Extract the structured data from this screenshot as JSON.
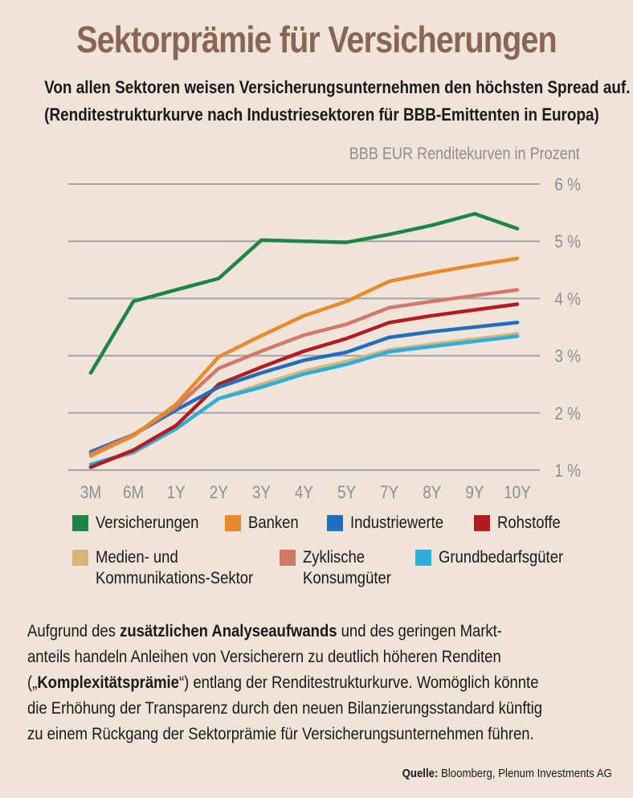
{
  "header": {
    "title": "Sektorprämie für Versicherungen",
    "subtitle_line1": "Von allen Sektoren weisen Versicherungsunternehmen den höchsten Spread auf.",
    "subtitle_line2": "(Renditestrukturkurve nach Industriesektoren für BBB-Emittenten in Europa)"
  },
  "chart_data": {
    "type": "line",
    "title": "Sektorprämie für Versicherungen",
    "ylabel": "BBB EUR Renditekurven in Prozent",
    "categories": [
      "3M",
      "6M",
      "1Y",
      "2Y",
      "3Y",
      "4Y",
      "5Y",
      "7Y",
      "8Y",
      "9Y",
      "10Y"
    ],
    "yticks": [
      "1 %",
      "2 %",
      "3 %",
      "4 %",
      "5 %",
      "6 %"
    ],
    "ylim": [
      1,
      6
    ],
    "grid": true,
    "legend_position": "bottom",
    "series": [
      {
        "name": "Versicherungen",
        "color": "#1d8548",
        "values": [
          2.7,
          3.95,
          4.15,
          4.35,
          5.02,
          5.0,
          4.98,
          5.12,
          5.28,
          5.48,
          5.22
        ]
      },
      {
        "name": "Banken",
        "color": "#e8892c",
        "values": [
          1.25,
          1.6,
          2.15,
          2.98,
          3.35,
          3.7,
          3.95,
          4.3,
          4.45,
          4.58,
          4.7
        ]
      },
      {
        "name": "Industriewerte",
        "color": "#1f6fbf",
        "values": [
          1.32,
          1.62,
          2.05,
          2.45,
          2.7,
          2.92,
          3.06,
          3.32,
          3.42,
          3.5,
          3.58
        ]
      },
      {
        "name": "Rohstoffe",
        "color": "#b31a21",
        "values": [
          1.05,
          1.35,
          1.78,
          2.5,
          2.8,
          3.08,
          3.3,
          3.58,
          3.7,
          3.8,
          3.9
        ]
      },
      {
        "name": "Medien- und Kommunikations-Sektor",
        "color": "#d6b57a",
        "values": [
          1.1,
          1.3,
          1.72,
          2.25,
          2.5,
          2.73,
          2.9,
          3.1,
          3.2,
          3.29,
          3.38
        ]
      },
      {
        "name": "Zyklische Konsumgüter",
        "color": "#d2786a",
        "values": [
          1.28,
          1.62,
          2.1,
          2.78,
          3.08,
          3.36,
          3.55,
          3.84,
          3.95,
          4.05,
          4.15
        ]
      },
      {
        "name": "Grundbedarfsgüter",
        "color": "#2ab0db",
        "values": [
          1.1,
          1.32,
          1.72,
          2.25,
          2.45,
          2.68,
          2.85,
          3.07,
          3.16,
          3.25,
          3.34
        ]
      }
    ]
  },
  "legend": {
    "versicherungen": "Versicherungen",
    "banken": "Banken",
    "industriewerte": "Industriewerte",
    "rohstoffe": "Rohstoffe",
    "medien_line1": "Medien- und",
    "medien_line2": "Kommunikations-Sektor",
    "zyklische_line1": "Zyklische",
    "zyklische_line2": "Konsumgüter",
    "grundbedarf": "Grundbedarfsgüter"
  },
  "body": {
    "line1_pre": "Aufgrund des ",
    "line1_bold": "zusätzlichen Analyseaufwands",
    "line1_post": " und des geringen Markt-",
    "line2": "anteils handeln Anleihen von Versicherern zu deutlich höheren Renditen",
    "line3_pre": "(„",
    "line3_bold": "Komplexitätsprämie",
    "line3_post": "“) entlang der Renditestrukturkurve. Womöglich könnte",
    "line4": "die Erhöhung der Transparenz durch den neuen Bilanzierungsstandard künftig",
    "line5": "zu einem Rückgang der Sektorprämie für Versicherungsunternehmen führen."
  },
  "source": {
    "label": "Quelle:",
    "text": " Bloomberg, Plenum Investments AG"
  }
}
